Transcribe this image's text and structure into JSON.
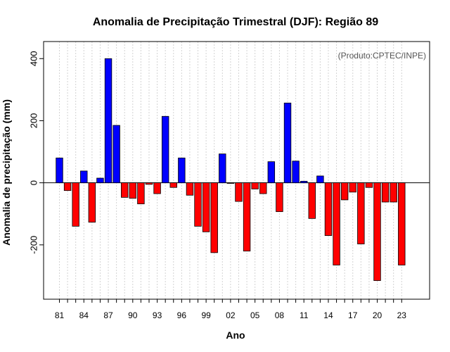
{
  "chart_data": {
    "type": "bar",
    "title": "Anomalia de Precipitação Trimestral (DJF): Região 89",
    "xlabel": "Ano",
    "ylabel": "Anomalia de precipitação (mm)",
    "source_note": "(Produto:CPTEC/INPE)",
    "ylim": [
      -375,
      455
    ],
    "y_ticks": [
      -200,
      0,
      200,
      400
    ],
    "x_tick_labels": [
      "81",
      "84",
      "87",
      "90",
      "93",
      "96",
      "99",
      "02",
      "05",
      "08",
      "11",
      "14",
      "17",
      "20",
      "23"
    ],
    "grid": true,
    "colors": {
      "positive": "#0000ff",
      "negative": "#ff0000",
      "zero_line": "#000000"
    },
    "categories": [
      "1981",
      "1982",
      "1983",
      "1984",
      "1985",
      "1986",
      "1987",
      "1988",
      "1989",
      "1990",
      "1991",
      "1992",
      "1993",
      "1994",
      "1995",
      "1996",
      "1997",
      "1998",
      "1999",
      "2000",
      "2001",
      "2002",
      "2003",
      "2004",
      "2005",
      "2006",
      "2007",
      "2008",
      "2009",
      "2010",
      "2011",
      "2012",
      "2013",
      "2014",
      "2015",
      "2016",
      "2017",
      "2018",
      "2019",
      "2020",
      "2021",
      "2022",
      "2023"
    ],
    "values": [
      80,
      -25,
      -140,
      38,
      -127,
      15,
      400,
      185,
      -47,
      -50,
      -68,
      -5,
      -35,
      214,
      -15,
      80,
      -40,
      -140,
      -158,
      -225,
      93,
      -2,
      -60,
      -220,
      -20,
      -35,
      68,
      -93,
      257,
      70,
      5,
      -115,
      22,
      -170,
      -265,
      -55,
      -30,
      -197,
      -15,
      -315,
      -62,
      -62,
      -265
    ]
  }
}
